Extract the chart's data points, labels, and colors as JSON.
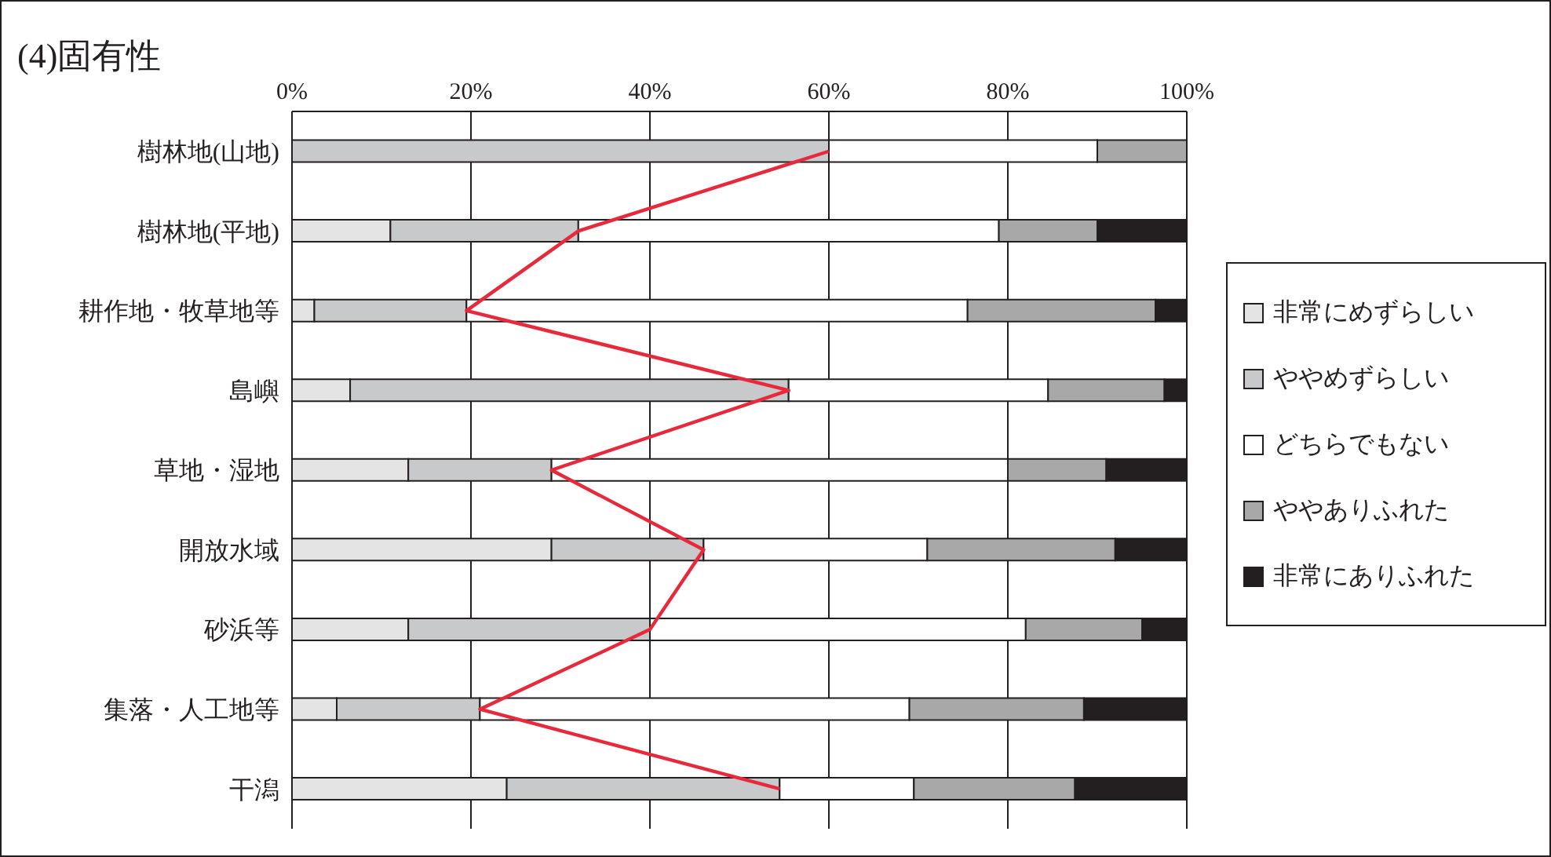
{
  "chart_data": {
    "type": "bar",
    "orientation": "horizontal",
    "stacked": true,
    "title": "(4)固有性",
    "categories": [
      "樹林地(山地)",
      "樹林地(平地)",
      "耕作地・牧草地等",
      "島嶼",
      "草地・湿地",
      "開放水域",
      "砂浜等",
      "集落・人工地等",
      "干潟"
    ],
    "series": [
      {
        "name": "非常にめずらしい",
        "color": "#e4e4e4",
        "values": [
          0,
          11,
          2.5,
          6.5,
          13,
          29,
          13,
          5,
          24
        ]
      },
      {
        "name": "ややめずらしい",
        "color": "#c8c9ca",
        "values": [
          60,
          21,
          17,
          49,
          16,
          17,
          27,
          16,
          30.5
        ]
      },
      {
        "name": "どちらでもない",
        "color": "#ffffff",
        "values": [
          30,
          47,
          56,
          29,
          51,
          25,
          42,
          48,
          15
        ]
      },
      {
        "name": "ややありふれた",
        "color": "#a8a8a8",
        "values": [
          10,
          11,
          21,
          13,
          11,
          21,
          13,
          19.5,
          18
        ]
      },
      {
        "name": "非常にありふれた",
        "color": "#231f20",
        "values": [
          0,
          10,
          3.5,
          2.5,
          9,
          8,
          5,
          11.5,
          12.5
        ]
      },
      {
        "type": "line",
        "color": "#e8293b",
        "values": [
          60,
          32,
          19.5,
          55.5,
          29,
          46,
          40,
          21,
          54.5
        ]
      }
    ],
    "xlim": [
      0,
      100
    ],
    "xticks": [
      {
        "value": 0,
        "label": "0%"
      },
      {
        "value": 20,
        "label": "20%"
      },
      {
        "value": 40,
        "label": "40%"
      },
      {
        "value": 60,
        "label": "60%"
      },
      {
        "value": 80,
        "label": "80%"
      },
      {
        "value": 100,
        "label": "100%"
      }
    ],
    "grid": "x",
    "legend": "right"
  }
}
